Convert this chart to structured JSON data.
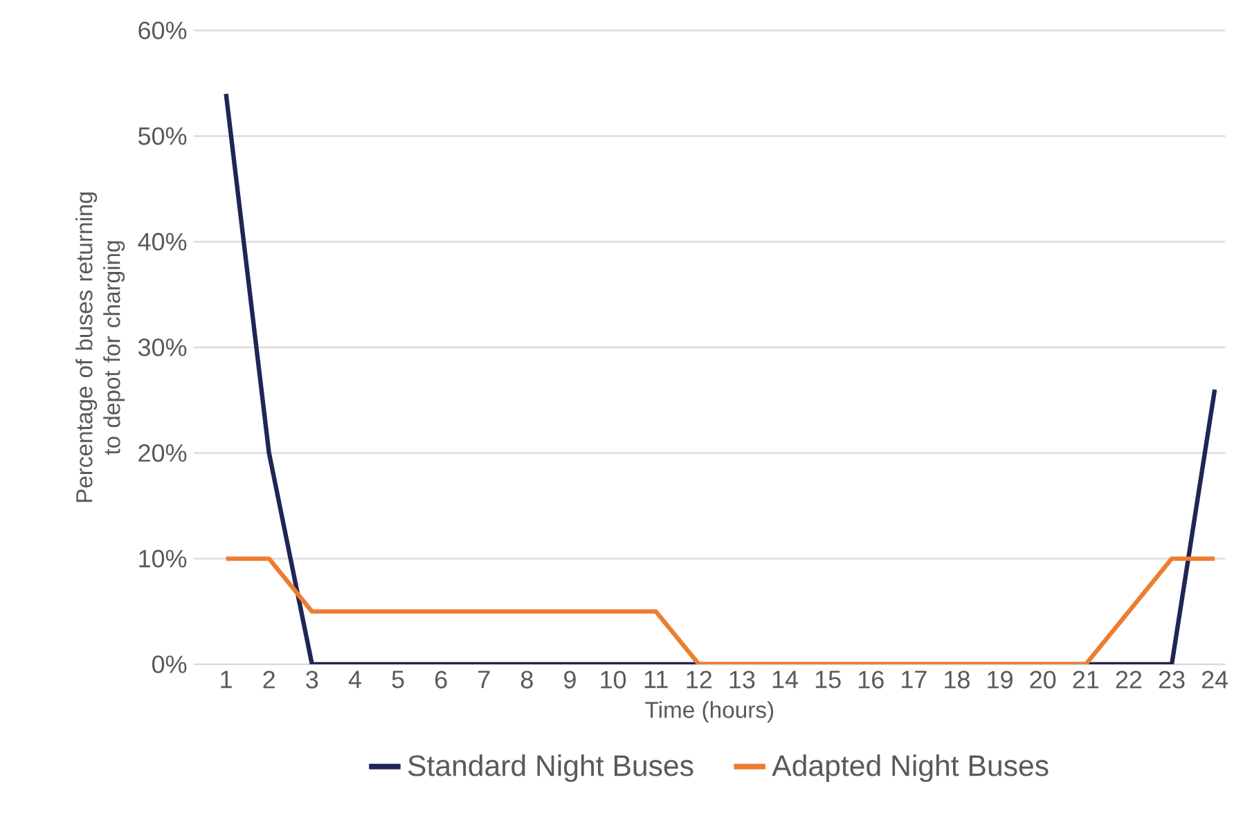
{
  "chart_data": {
    "type": "line",
    "xlabel": "Time (hours)",
    "ylabel": "Percentage of buses returning to depot for charging",
    "categories": [
      "1",
      "2",
      "3",
      "4",
      "5",
      "6",
      "7",
      "8",
      "9",
      "10",
      "11",
      "12",
      "13",
      "14",
      "15",
      "16",
      "17",
      "18",
      "19",
      "20",
      "21",
      "22",
      "23",
      "24"
    ],
    "series": [
      {
        "name": "Standard Night Buses",
        "color": "#1f2657",
        "values": [
          54,
          20,
          0,
          0,
          0,
          0,
          0,
          0,
          0,
          0,
          0,
          0,
          0,
          0,
          0,
          0,
          0,
          0,
          0,
          0,
          0,
          0,
          0,
          26
        ]
      },
      {
        "name": "Adapted Night Buses",
        "color": "#ed7d31",
        "values": [
          10,
          10,
          5,
          5,
          5,
          5,
          5,
          5,
          5,
          5,
          5,
          0,
          0,
          0,
          0,
          0,
          0,
          0,
          0,
          0,
          0,
          5,
          10,
          10
        ]
      }
    ],
    "ylim": [
      0,
      60
    ],
    "yticks": [
      {
        "value": 0,
        "label": "0%"
      },
      {
        "value": 10,
        "label": "10%"
      },
      {
        "value": 20,
        "label": "20%"
      },
      {
        "value": 30,
        "label": "30%"
      },
      {
        "value": 40,
        "label": "40%"
      },
      {
        "value": 50,
        "label": "50%"
      },
      {
        "value": 60,
        "label": "60%"
      }
    ],
    "grid": "y",
    "legend": "bottom",
    "marker": "none",
    "line_style": "solid"
  }
}
